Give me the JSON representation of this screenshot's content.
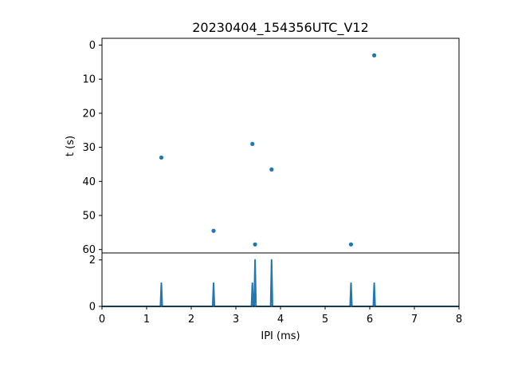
{
  "chart_data": [
    {
      "type": "scatter",
      "title": "20230404_154356UTC_V12",
      "xlabel": "",
      "ylabel": "t (s)",
      "xlim": [
        0,
        8
      ],
      "ylim": [
        61,
        -2
      ],
      "y_inverted": true,
      "yticks": [
        0,
        10,
        20,
        30,
        40,
        50,
        60
      ],
      "color": "#1f77b4",
      "grid": false,
      "points": [
        {
          "x": 6.1,
          "y": 3
        },
        {
          "x": 1.33,
          "y": 33
        },
        {
          "x": 3.37,
          "y": 29
        },
        {
          "x": 3.8,
          "y": 36.5
        },
        {
          "x": 2.5,
          "y": 54.5
        },
        {
          "x": 3.43,
          "y": 58.5
        },
        {
          "x": 5.58,
          "y": 58.5
        }
      ]
    },
    {
      "type": "line",
      "title": "",
      "xlabel": "IPI (ms)",
      "ylabel": "",
      "xlim": [
        0,
        8
      ],
      "ylim": [
        0,
        2.3
      ],
      "xticks": [
        0,
        1,
        2,
        3,
        4,
        5,
        6,
        7,
        8
      ],
      "yticks": [
        0,
        2
      ],
      "color": "#1f77b4",
      "grid": false,
      "peaks": [
        {
          "x": 1.33,
          "y": 1
        },
        {
          "x": 2.5,
          "y": 1
        },
        {
          "x": 3.37,
          "y": 1
        },
        {
          "x": 3.43,
          "y": 2
        },
        {
          "x": 3.8,
          "y": 2
        },
        {
          "x": 5.58,
          "y": 1
        },
        {
          "x": 6.1,
          "y": 1
        }
      ]
    }
  ]
}
